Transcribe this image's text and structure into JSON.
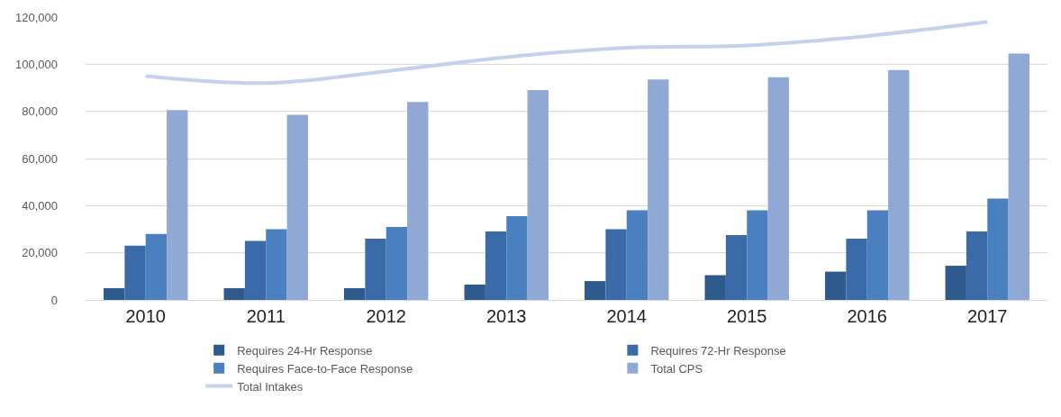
{
  "chart_data": {
    "type": "bar",
    "categories": [
      "2010",
      "2011",
      "2012",
      "2013",
      "2014",
      "2015",
      "2016",
      "2017"
    ],
    "series": [
      {
        "name": "Requires 24-Hr Response",
        "color": "#2f5a8e",
        "values": [
          5000,
          5000,
          5000,
          6500,
          8000,
          10500,
          12000,
          14500
        ]
      },
      {
        "name": "Requires 72-Hr Response",
        "color": "#3a6aa8",
        "values": [
          23000,
          25000,
          26000,
          29000,
          30000,
          27500,
          26000,
          29000
        ]
      },
      {
        "name": "Requires Face-to-Face Response",
        "color": "#4a7fc0",
        "values": [
          28000,
          30000,
          31000,
          35500,
          38000,
          38000,
          38000,
          43000
        ]
      },
      {
        "name": "Total CPS",
        "color": "#8fa8d4",
        "values": [
          80500,
          78500,
          84000,
          89000,
          93500,
          94500,
          97500,
          104500
        ]
      },
      {
        "name": "Total Intakes",
        "type": "line",
        "color": "#c5d2ea",
        "values": [
          95000,
          92000,
          97000,
          103000,
          107000,
          108000,
          112000,
          118000
        ]
      }
    ],
    "ylim": [
      0,
      120000
    ],
    "yticks": [
      {
        "value": 0,
        "label": "0"
      },
      {
        "value": 20000,
        "label": "20,000"
      },
      {
        "value": 40000,
        "label": "40,000"
      },
      {
        "value": 60000,
        "label": "60,000"
      },
      {
        "value": 80000,
        "label": "80,000"
      },
      {
        "value": 100000,
        "label": "100,000"
      },
      {
        "value": 120000,
        "label": "120,000"
      }
    ],
    "grid": "y",
    "legend": "bottom"
  }
}
